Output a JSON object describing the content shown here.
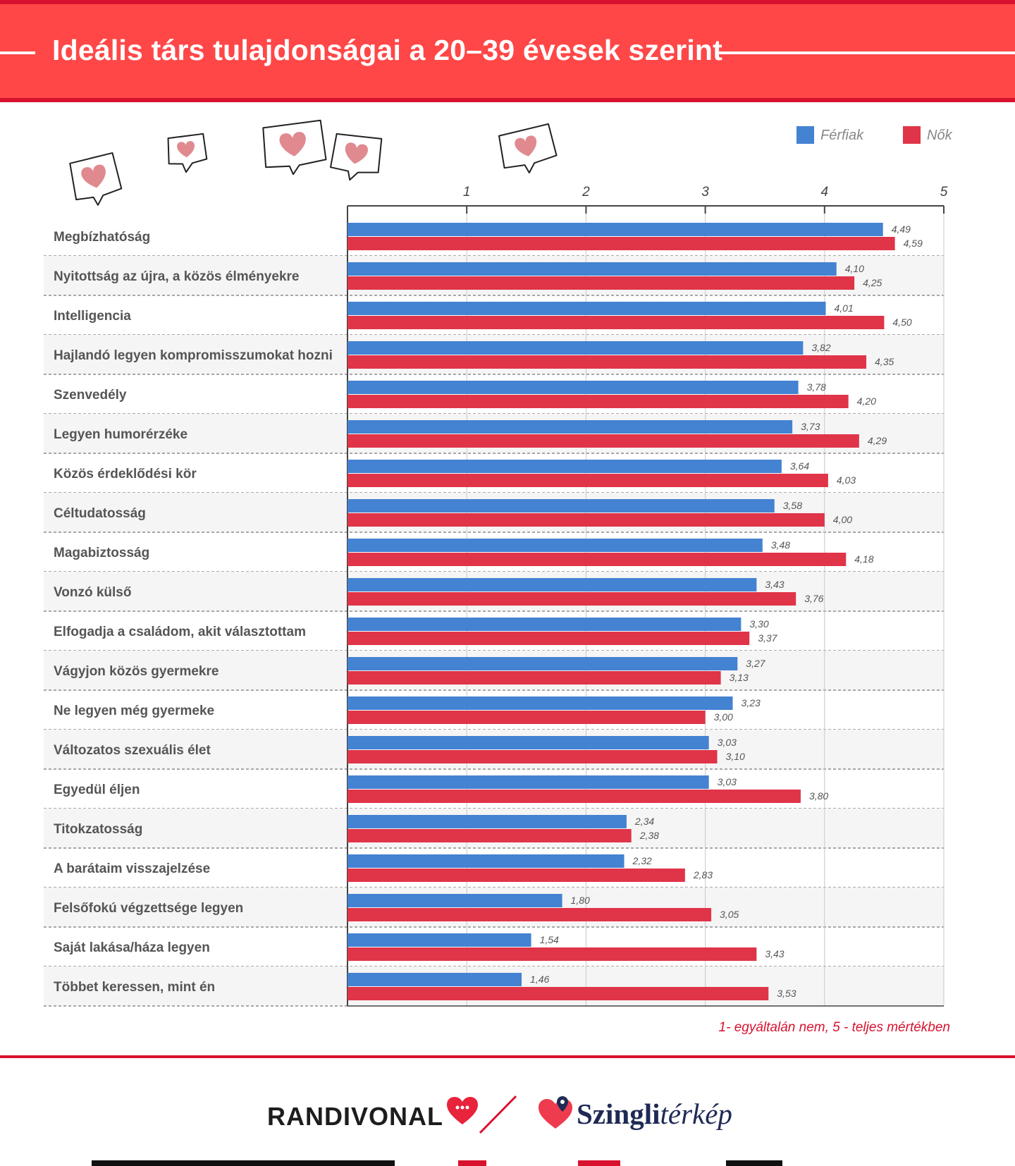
{
  "header": {
    "title": "Ideális társ tulajdonságai a 20–39 évesek szerint"
  },
  "chart_data": {
    "type": "bar",
    "orientation": "horizontal",
    "xlim": [
      0,
      5
    ],
    "x_ticks": [
      "1",
      "2",
      "3",
      "4",
      "5"
    ],
    "legend_position": "top-right",
    "categories": [
      "Megbízhatóság",
      "Nyitottság az újra, a közös élményekre",
      "Intelligencia",
      "Hajlandó legyen kompromisszumokat hozni",
      "Szenvedély",
      "Legyen humorérzéke",
      "Közös érdeklődési kör",
      "Céltudatosság",
      "Magabiztosság",
      "Vonzó külső",
      "Elfogadja a családom, akit választottam",
      "Vágyjon közös gyermekre",
      "Ne legyen még gyermeke",
      "Változatos szexuális élet",
      "Egyedül éljen",
      "Titokzatosság",
      "A barátaim visszajelzése",
      "Felsőfokú végzettsége legyen",
      "Saját lakása/háza legyen",
      "Többet keressen, mint én"
    ],
    "series": [
      {
        "name": "Férfiak",
        "color": "#4482d2",
        "values": [
          4.49,
          4.1,
          4.01,
          3.82,
          3.78,
          3.73,
          3.64,
          3.58,
          3.48,
          3.43,
          3.3,
          3.27,
          3.23,
          3.03,
          3.03,
          2.34,
          2.32,
          1.8,
          1.54,
          1.46
        ],
        "labels": [
          "4,49",
          "4,10",
          "4,01",
          "3,82",
          "3,78",
          "3,73",
          "3,64",
          "3,58",
          "3,48",
          "3,43",
          "3,30",
          "3,27",
          "3,23",
          "3,03",
          "3,03",
          "2,34",
          "2,32",
          "1,80",
          "1,54",
          "1,46"
        ]
      },
      {
        "name": "Nők",
        "color": "#e03448",
        "values": [
          4.59,
          4.25,
          4.5,
          4.35,
          4.2,
          4.29,
          4.03,
          4.0,
          4.18,
          3.76,
          3.37,
          3.13,
          3.0,
          3.1,
          3.8,
          2.38,
          2.83,
          3.05,
          3.43,
          3.53
        ],
        "labels": [
          "4,59",
          "4,25",
          "4,50",
          "4,35",
          "4,20",
          "4,29",
          "4,03",
          "4,00",
          "4,18",
          "3,76",
          "3,37",
          "3,13",
          "3,00",
          "3,10",
          "3,80",
          "2,38",
          "2,83",
          "3,05",
          "3,43",
          "3,53"
        ]
      }
    ]
  },
  "note": "1- egyáltalán nem, 5 - teljes mértékben",
  "logos": {
    "randivonal": "RANDIVONAL",
    "szingli_bold": "Szingli",
    "szingli_italic": "térkép"
  },
  "colors": {
    "accent": "#ff4747",
    "accent_dark": "#d8122e",
    "men": "#4482d2",
    "women": "#e03448"
  }
}
